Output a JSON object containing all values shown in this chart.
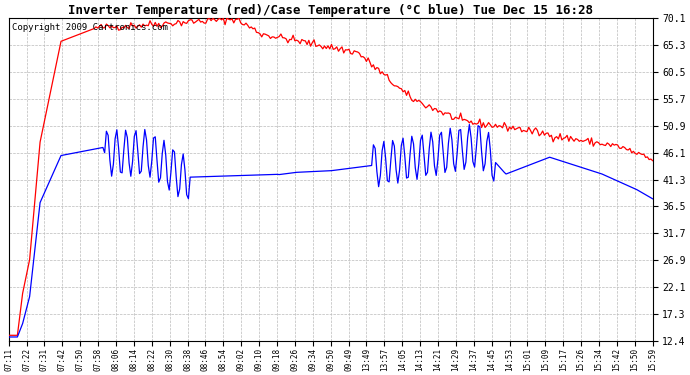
{
  "title": "Inverter Temperature (red)/Case Temperature (°C blue) Tue Dec 15 16:28",
  "copyright": "Copyright 2009 Cartronics.com",
  "yticks": [
    12.4,
    17.3,
    22.1,
    26.9,
    31.7,
    36.5,
    41.3,
    46.1,
    50.9,
    55.7,
    60.5,
    65.3,
    70.1
  ],
  "xtick_labels": [
    "07:11",
    "07:22",
    "07:31",
    "07:42",
    "07:50",
    "07:58",
    "08:06",
    "08:14",
    "08:22",
    "08:30",
    "08:38",
    "08:46",
    "08:54",
    "09:02",
    "09:10",
    "09:18",
    "09:26",
    "09:34",
    "09:50",
    "09:49",
    "13:49",
    "13:57",
    "14:05",
    "14:13",
    "14:21",
    "14:29",
    "14:37",
    "14:45",
    "14:53",
    "15:01",
    "15:09",
    "15:17",
    "15:26",
    "15:34",
    "15:42",
    "15:50",
    "15:59"
  ],
  "ymin": 12.4,
  "ymax": 70.1,
  "bg_color": "#ffffff",
  "grid_color": "#bbbbbb",
  "red_color": "#ff0000",
  "blue_color": "#0000ff",
  "title_fontsize": 9,
  "copyright_fontsize": 6.5
}
